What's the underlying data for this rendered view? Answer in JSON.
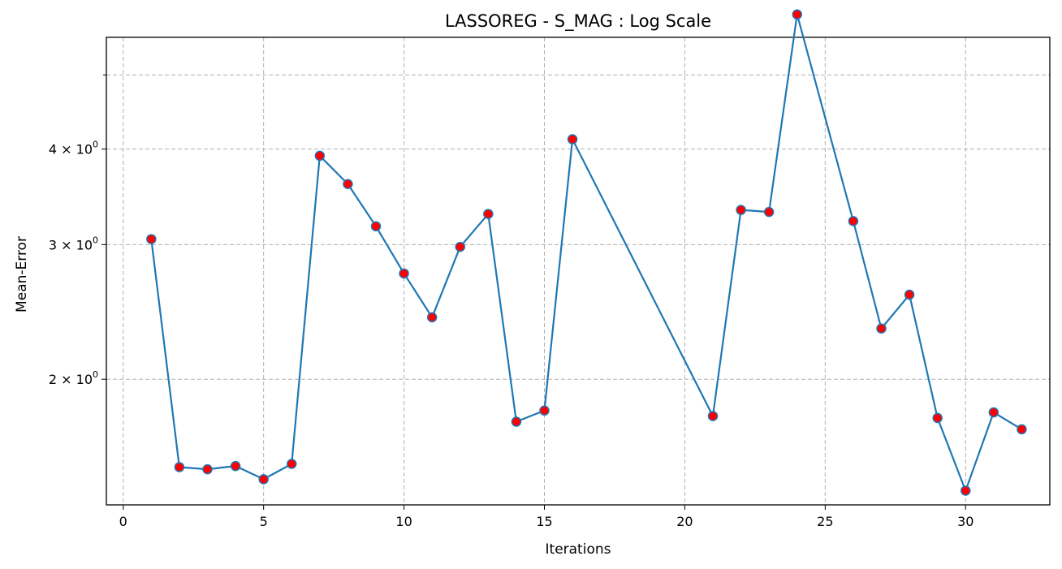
{
  "chart_data": {
    "type": "line",
    "title": "LASSOREG - S_MAG : Log Scale",
    "xlabel": "Iterations",
    "ylabel": "Mean-Error",
    "yscale": "log",
    "grid": true,
    "xlim": [
      -0.6,
      33.0
    ],
    "ylim": [
      1.37,
      5.6
    ],
    "x_ticks": [
      {
        "value": 0,
        "label": "0"
      },
      {
        "value": 5,
        "label": "5"
      },
      {
        "value": 10,
        "label": "10"
      },
      {
        "value": 15,
        "label": "15"
      },
      {
        "value": 20,
        "label": "20"
      },
      {
        "value": 25,
        "label": "25"
      },
      {
        "value": 30,
        "label": "30"
      }
    ],
    "y_ticks": [
      {
        "value": 2,
        "label": "2 × 10",
        "exp": "0"
      },
      {
        "value": 3,
        "label": "3 × 10",
        "exp": "0"
      },
      {
        "value": 4,
        "label": "4 × 10",
        "exp": "0"
      }
    ],
    "y_minor_ticks": [
      5
    ],
    "colors": {
      "line": "#1f77b4",
      "marker_fill": "#ff0000",
      "marker_edge": "#1f77b4",
      "grid": "#b0b0b0"
    },
    "series": [
      {
        "x": [
          1,
          2,
          3,
          4,
          5,
          6,
          7,
          8,
          9,
          10,
          11,
          12,
          13,
          14,
          15,
          16,
          21,
          22,
          23,
          24,
          26,
          27,
          28,
          29,
          30,
          31,
          32
        ],
        "values": [
          3.05,
          1.535,
          1.525,
          1.54,
          1.48,
          1.55,
          3.92,
          3.6,
          3.17,
          2.75,
          2.41,
          2.98,
          3.29,
          1.76,
          1.82,
          4.12,
          1.79,
          3.33,
          3.31,
          6.0,
          3.22,
          2.33,
          2.58,
          1.78,
          1.43,
          1.81,
          1.72
        ]
      }
    ]
  }
}
